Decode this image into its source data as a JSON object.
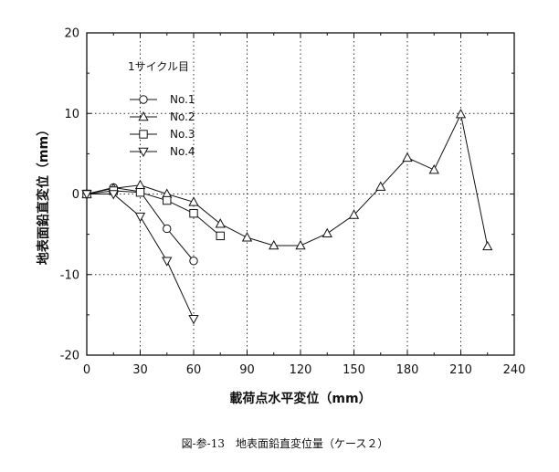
{
  "chart_data": {
    "type": "line",
    "xlabel": "載荷点水平変位（mm）",
    "ylabel": "地表面鉛直変位（mm）",
    "xlim": [
      0,
      240
    ],
    "ylim": [
      -20,
      20
    ],
    "xticks": [
      "0",
      "30",
      "60",
      "90",
      "120",
      "150",
      "180",
      "210",
      "240"
    ],
    "yticks": [
      "20",
      "10",
      "0",
      "-10",
      "-20"
    ],
    "grid": true,
    "legend_title": "1サイクル目",
    "legend_position": "top-left",
    "series": [
      {
        "name": "No.1",
        "marker": "circle",
        "x": [
          0,
          15,
          30,
          45,
          60
        ],
        "y": [
          0,
          0.8,
          0.3,
          -4.3,
          -8.3
        ]
      },
      {
        "name": "No.2",
        "marker": "triangle-up",
        "x": [
          0,
          15,
          30,
          45,
          60,
          75,
          90,
          105,
          120,
          135,
          150,
          165,
          180,
          195,
          210,
          225
        ],
        "y": [
          0,
          0.7,
          1.1,
          0,
          -1,
          -3.7,
          -5.4,
          -6.4,
          -6.4,
          -4.9,
          -2.6,
          0.9,
          4.5,
          3,
          9.9,
          -6.5
        ]
      },
      {
        "name": "No.3",
        "marker": "square",
        "x": [
          0,
          15,
          30,
          45,
          60,
          75
        ],
        "y": [
          0,
          0.4,
          0.2,
          -0.8,
          -2.4,
          -5.2
        ]
      },
      {
        "name": "No.4",
        "marker": "triangle-down",
        "x": [
          0,
          15,
          30,
          45,
          60
        ],
        "y": [
          0,
          0,
          -2.8,
          -8.3,
          -15.5
        ]
      }
    ]
  },
  "caption": "図-参-13　地表面鉛直変位量（ケース２）"
}
